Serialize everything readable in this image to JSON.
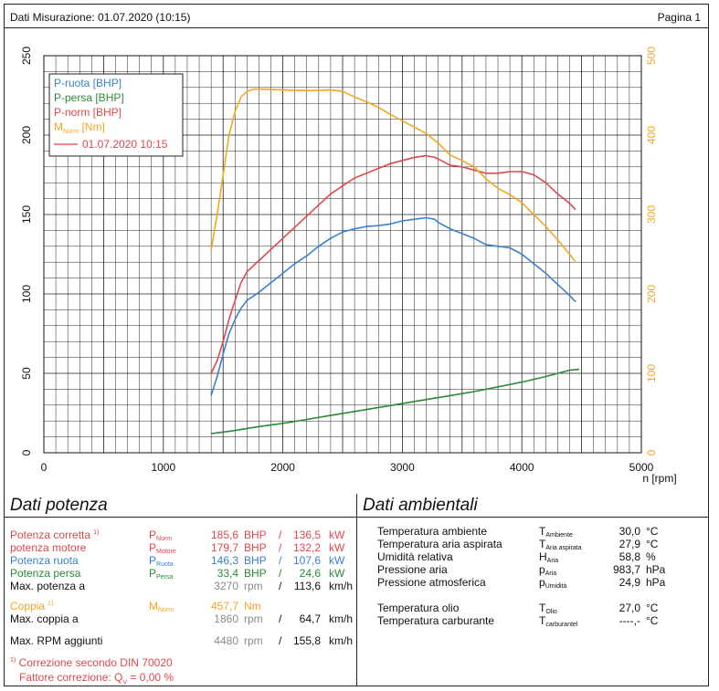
{
  "header": {
    "date_label": "Dati Misurazione: 01.07.2020 (10:15)",
    "page_label": "Pagina 1"
  },
  "chart_data": {
    "type": "line",
    "xlabel": "n [rpm]",
    "xlim": [
      0,
      5000
    ],
    "x_ticks": [
      "0",
      "1000",
      "2000",
      "3000",
      "4000",
      "5000"
    ],
    "ylim_left": [
      0,
      250
    ],
    "y_ticks_left": [
      "0",
      "50",
      "100",
      "150",
      "200",
      "250"
    ],
    "ylim_right": [
      0,
      500
    ],
    "y_ticks_right": [
      "0",
      "100",
      "200",
      "300",
      "400",
      "500"
    ],
    "grid": true,
    "legend_position": "top-left",
    "legend": {
      "entries": [
        {
          "label": "P-ruota [BHP]",
          "color": "#3b7fcf"
        },
        {
          "label": "P-persa [BHP]",
          "color": "#2b8a36"
        },
        {
          "label": "P-norm [BHP]",
          "color": "#e0474c"
        },
        {
          "label_main": "M",
          "label_sub": "Norm",
          "label_tail": " [Nm]",
          "color": "#f5a623"
        }
      ],
      "run_label": "01.07.2020 10:15",
      "run_color": "#e0474c"
    },
    "series": [
      {
        "name": "P-ruota [BHP]",
        "axis": "left",
        "color": "#3b7fcf",
        "points": [
          [
            1400,
            36
          ],
          [
            1450,
            48
          ],
          [
            1500,
            62
          ],
          [
            1550,
            75
          ],
          [
            1600,
            84
          ],
          [
            1650,
            91
          ],
          [
            1700,
            96
          ],
          [
            1800,
            101
          ],
          [
            1900,
            107
          ],
          [
            2000,
            113
          ],
          [
            2100,
            119
          ],
          [
            2200,
            124
          ],
          [
            2300,
            130
          ],
          [
            2400,
            135
          ],
          [
            2500,
            139
          ],
          [
            2600,
            141
          ],
          [
            2700,
            142.5
          ],
          [
            2800,
            143
          ],
          [
            2900,
            144
          ],
          [
            3000,
            146
          ],
          [
            3100,
            147
          ],
          [
            3200,
            148
          ],
          [
            3270,
            147
          ],
          [
            3300,
            145
          ],
          [
            3400,
            141
          ],
          [
            3500,
            138
          ],
          [
            3600,
            135
          ],
          [
            3700,
            131
          ],
          [
            3800,
            130
          ],
          [
            3900,
            129
          ],
          [
            4000,
            125
          ],
          [
            4100,
            119
          ],
          [
            4200,
            113
          ],
          [
            4300,
            106
          ],
          [
            4400,
            99
          ],
          [
            4450,
            95
          ]
        ]
      },
      {
        "name": "P-persa [BHP]",
        "axis": "left",
        "color": "#2b8a36",
        "points": [
          [
            1400,
            12
          ],
          [
            1600,
            14
          ],
          [
            1800,
            16.5
          ],
          [
            2000,
            18.5
          ],
          [
            2200,
            21
          ],
          [
            2400,
            23.5
          ],
          [
            2600,
            26
          ],
          [
            2800,
            28.5
          ],
          [
            3000,
            31
          ],
          [
            3200,
            33.5
          ],
          [
            3400,
            36
          ],
          [
            3600,
            38.5
          ],
          [
            3800,
            41.5
          ],
          [
            4000,
            44.5
          ],
          [
            4200,
            48
          ],
          [
            4400,
            52
          ],
          [
            4480,
            52.5
          ]
        ]
      },
      {
        "name": "P-norm [BHP]",
        "axis": "left",
        "color": "#e0474c",
        "points": [
          [
            1400,
            50
          ],
          [
            1450,
            58
          ],
          [
            1500,
            70
          ],
          [
            1550,
            84
          ],
          [
            1600,
            96
          ],
          [
            1650,
            107
          ],
          [
            1700,
            114
          ],
          [
            1800,
            121
          ],
          [
            1900,
            128
          ],
          [
            2000,
            135
          ],
          [
            2100,
            142
          ],
          [
            2200,
            149
          ],
          [
            2300,
            156
          ],
          [
            2400,
            163
          ],
          [
            2500,
            168
          ],
          [
            2600,
            173
          ],
          [
            2700,
            176
          ],
          [
            2800,
            179
          ],
          [
            2900,
            182
          ],
          [
            3000,
            184
          ],
          [
            3100,
            186
          ],
          [
            3200,
            187
          ],
          [
            3270,
            186
          ],
          [
            3300,
            185
          ],
          [
            3400,
            181
          ],
          [
            3500,
            180
          ],
          [
            3600,
            178
          ],
          [
            3700,
            176
          ],
          [
            3800,
            176
          ],
          [
            3900,
            177
          ],
          [
            4000,
            177
          ],
          [
            4100,
            175
          ],
          [
            4200,
            170
          ],
          [
            4300,
            163
          ],
          [
            4400,
            157
          ],
          [
            4450,
            153
          ]
        ]
      },
      {
        "name": "M Norm [Nm]",
        "axis": "right",
        "color": "#f5a623",
        "points": [
          [
            1400,
            255
          ],
          [
            1450,
            300
          ],
          [
            1500,
            350
          ],
          [
            1550,
            400
          ],
          [
            1600,
            430
          ],
          [
            1650,
            448
          ],
          [
            1700,
            455
          ],
          [
            1760,
            458
          ],
          [
            1860,
            457.7
          ],
          [
            2000,
            457
          ],
          [
            2200,
            456
          ],
          [
            2400,
            457
          ],
          [
            2500,
            455
          ],
          [
            2600,
            448
          ],
          [
            2700,
            442
          ],
          [
            2800,
            435
          ],
          [
            2900,
            426
          ],
          [
            3000,
            418
          ],
          [
            3100,
            410
          ],
          [
            3200,
            402
          ],
          [
            3300,
            390
          ],
          [
            3400,
            375
          ],
          [
            3500,
            368
          ],
          [
            3600,
            360
          ],
          [
            3700,
            345
          ],
          [
            3800,
            333
          ],
          [
            3900,
            325
          ],
          [
            4000,
            315
          ],
          [
            4100,
            300
          ],
          [
            4200,
            285
          ],
          [
            4300,
            268
          ],
          [
            4400,
            250
          ],
          [
            4450,
            240
          ]
        ]
      }
    ]
  },
  "dati_potenza": {
    "title": "Dati potenza",
    "rows": [
      {
        "label": "Potenza corretta",
        "label_sup": "1)",
        "sym": "P",
        "sym_sub": "Norm",
        "v1": "185,6",
        "u1": "BHP",
        "sep": "/",
        "v2": "136,5",
        "u2": "kW",
        "color": "#e0474c",
        "unit_gray": false
      },
      {
        "label": "potenza motore",
        "label_sup": "",
        "sym": "P",
        "sym_sub": "Motore",
        "v1": "179,7",
        "u1": "BHP",
        "sep": "/",
        "v2": "132,2",
        "u2": "kW",
        "color": "#e0474c",
        "unit_gray": false
      },
      {
        "label": "Potenza ruota",
        "label_sup": "",
        "sym": "P",
        "sym_sub": "Ruota",
        "v1": "146,3",
        "u1": "BHP",
        "sep": "/",
        "v2": "107,6",
        "u2": "kW",
        "color": "#3b7fcf",
        "unit_gray": false
      },
      {
        "label": "Potenza persa",
        "label_sup": "",
        "sym": "P",
        "sym_sub": "Persa",
        "v1": "33,4",
        "u1": "BHP",
        "sep": "/",
        "v2": "24,6",
        "u2": "kW",
        "color": "#2b8a36",
        "unit_gray": false
      },
      {
        "label": "Max. potenza a",
        "label_sup": "",
        "sym": "",
        "sym_sub": "",
        "v1": "3270",
        "u1": "rpm",
        "sep": "/",
        "v2": "113,6",
        "u2": "km/h",
        "color": "#111111",
        "unit_gray": true
      },
      {
        "label": "Coppia",
        "label_sup": "1)",
        "sym": "M",
        "sym_sub": "Norm",
        "v1": "457,7",
        "u1": "Nm",
        "sep": "",
        "v2": "",
        "u2": "",
        "color": "#f5a623",
        "unit_gray": false
      },
      {
        "label": "Max. coppia a",
        "label_sup": "",
        "sym": "",
        "sym_sub": "",
        "v1": "1860",
        "u1": "rpm",
        "sep": "/",
        "v2": "64,7",
        "u2": "km/h",
        "color": "#111111",
        "unit_gray": true
      },
      {
        "label": "Max. RPM aggiunti",
        "label_sup": "",
        "sym": "",
        "sym_sub": "",
        "v1": "4480",
        "u1": "rpm",
        "sep": "/",
        "v2": "155,8",
        "u2": "km/h",
        "color": "#111111",
        "unit_gray": true
      }
    ],
    "note_line1": "Correzione secondo DIN 70020",
    "note_sup": "1)",
    "note_line2_prefix": "Fattore correzione: Q",
    "note_line2_sub": "V",
    "note_line2_value": " =   0,00 %"
  },
  "dati_ambientali": {
    "title": "Dati ambientali",
    "rows": [
      {
        "label": "Temperatura ambiente",
        "sym": "T",
        "sym_sub": "Ambiente",
        "value": "30,0",
        "unit": "°C"
      },
      {
        "label": "Temperatura aria aspirata",
        "sym": "T",
        "sym_sub": "Aria aspirata",
        "value": "27,9",
        "unit": "°C"
      },
      {
        "label": "Umidità relativa",
        "sym": "H",
        "sym_sub": "Aria",
        "value": "58,8",
        "unit": "%"
      },
      {
        "label": "Pressione aria",
        "sym": "p",
        "sym_sub": "Aria",
        "value": "983,7",
        "unit": "hPa"
      },
      {
        "label": "Pressione atmosferica",
        "sym": "p",
        "sym_sub": "Umidità",
        "value": "24,9",
        "unit": "hPa"
      },
      {
        "label": "Temperatura olio",
        "sym": "T",
        "sym_sub": "Olio",
        "value": "27,0",
        "unit": "°C"
      },
      {
        "label": "Temperatura carburante",
        "sym": "T",
        "sym_sub": "carburantel",
        "value": "----,-",
        "unit": "°C"
      }
    ]
  }
}
